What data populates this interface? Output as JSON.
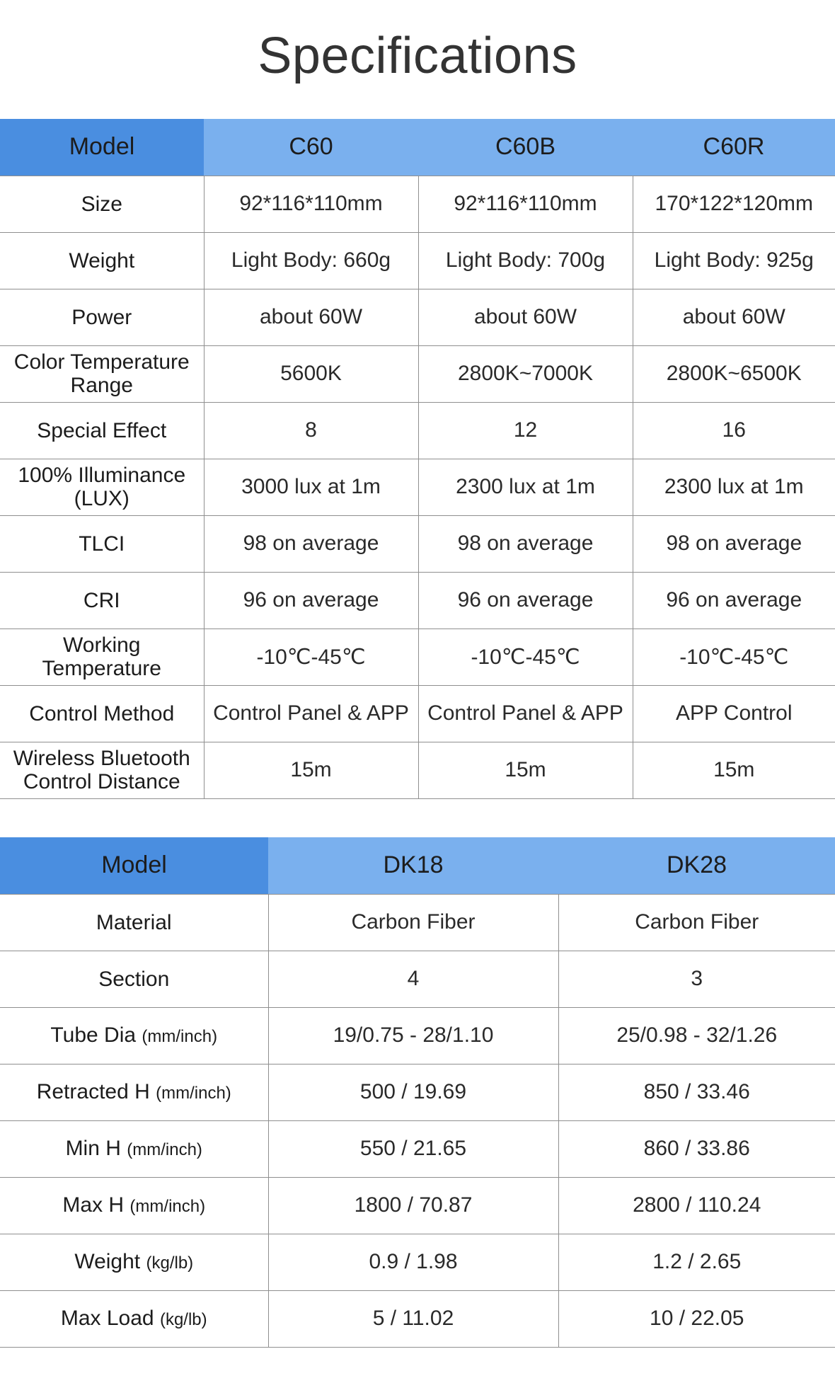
{
  "title": "Specifications",
  "table1": {
    "header": [
      "Model",
      "C60",
      "C60B",
      "C60R"
    ],
    "rows": [
      {
        "label": "Size",
        "values": [
          "92*116*110mm",
          "92*116*110mm",
          "170*122*120mm"
        ]
      },
      {
        "label": "Weight",
        "values": [
          "Light Body: 660g",
          "Light Body: 700g",
          "Light Body: 925g"
        ]
      },
      {
        "label": "Power",
        "values": [
          "about 60W",
          "about 60W",
          "about 60W"
        ]
      },
      {
        "label": "Color Temperature Range",
        "values": [
          "5600K",
          "2800K~7000K",
          "2800K~6500K"
        ]
      },
      {
        "label": "Special Effect",
        "values": [
          "8",
          "12",
          "16"
        ]
      },
      {
        "label": "100% Illuminance (LUX)",
        "values": [
          "3000 lux at 1m",
          "2300 lux at 1m",
          "2300 lux at 1m"
        ]
      },
      {
        "label": "TLCI",
        "values": [
          "98 on average",
          "98 on average",
          "98 on average"
        ]
      },
      {
        "label": "CRI",
        "values": [
          "96 on average",
          "96 on average",
          "96 on average"
        ]
      },
      {
        "label": "Working Temperature",
        "values": [
          "-10℃-45℃",
          "-10℃-45℃",
          "-10℃-45℃"
        ]
      },
      {
        "label": "Control Method",
        "values": [
          "Control Panel & APP",
          "Control Panel & APP",
          "APP Control"
        ]
      },
      {
        "label": "Wireless Bluetooth Control Distance",
        "values": [
          "15m",
          "15m",
          "15m"
        ]
      }
    ]
  },
  "table2": {
    "header": [
      "Model",
      "DK18",
      "DK28"
    ],
    "rows": [
      {
        "label": "Material",
        "unit": "",
        "values": [
          "Carbon Fiber",
          "Carbon Fiber"
        ]
      },
      {
        "label": "Section",
        "unit": "",
        "values": [
          "4",
          "3"
        ]
      },
      {
        "label": "Tube Dia",
        "unit": "(mm/inch)",
        "values": [
          "19/0.75 - 28/1.10",
          "25/0.98 - 32/1.26"
        ]
      },
      {
        "label": "Retracted H",
        "unit": "(mm/inch)",
        "values": [
          "500 / 19.69",
          "850 / 33.46"
        ]
      },
      {
        "label": "Min H",
        "unit": "(mm/inch)",
        "values": [
          "550 / 21.65",
          "860 / 33.86"
        ]
      },
      {
        "label": "Max H",
        "unit": "(mm/inch)",
        "values": [
          "1800 / 70.87",
          "2800 / 110.24"
        ]
      },
      {
        "label": "Weight",
        "unit": "(kg/lb)",
        "values": [
          "0.9 / 1.98",
          "1.2 / 2.65"
        ]
      },
      {
        "label": "Max Load",
        "unit": "(kg/lb)",
        "values": [
          "5 / 11.02",
          "10 / 22.05"
        ]
      }
    ]
  }
}
